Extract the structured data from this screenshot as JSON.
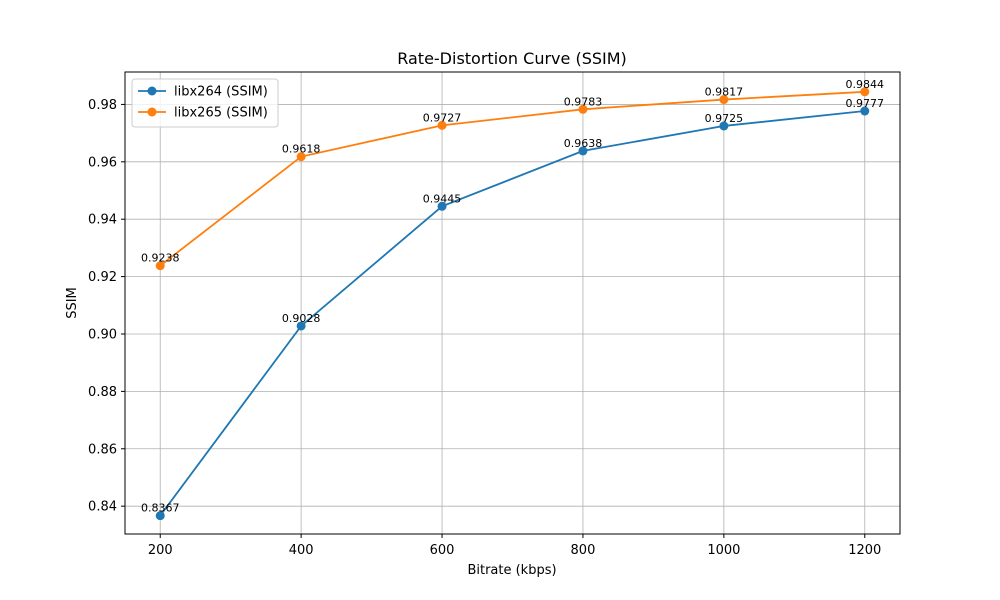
{
  "chart_data": {
    "type": "line",
    "title": "Rate-Distortion Curve (SSIM)",
    "xlabel": "Bitrate (kbps)",
    "ylabel": "SSIM",
    "x": [
      200,
      400,
      600,
      800,
      1000,
      1200
    ],
    "xlim": [
      150,
      1250
    ],
    "ylim": [
      0.8303,
      0.9913
    ],
    "xticks": [
      200,
      400,
      600,
      800,
      1000,
      1200
    ],
    "yticks": [
      "0.84",
      "0.86",
      "0.88",
      "0.90",
      "0.92",
      "0.94",
      "0.96",
      "0.98"
    ],
    "grid": true,
    "legend_position": "top-left",
    "series": [
      {
        "name": "libx264 (SSIM)",
        "color": "#1f77b4",
        "marker": "circle",
        "values": [
          0.8367,
          0.9028,
          0.9445,
          0.9638,
          0.9725,
          0.9777
        ],
        "labels": [
          "0.8367",
          "0.9028",
          "0.9445",
          "0.9638",
          "0.9725",
          "0.9777"
        ]
      },
      {
        "name": "libx265 (SSIM)",
        "color": "#ff7f0e",
        "marker": "circle",
        "values": [
          0.9238,
          0.9618,
          0.9727,
          0.9783,
          0.9817,
          0.9844
        ],
        "labels": [
          "0.9238",
          "0.9618",
          "0.9727",
          "0.9783",
          "0.9817",
          "0.9844"
        ]
      }
    ]
  }
}
